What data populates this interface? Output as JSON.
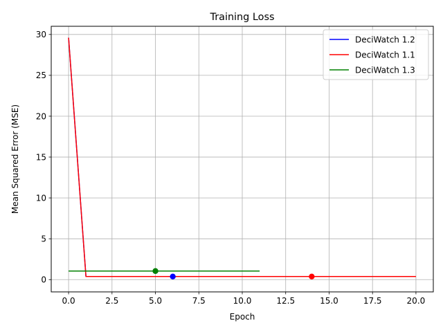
{
  "chart_data": {
    "type": "line",
    "title": "Training Loss",
    "xlabel": "Epoch",
    "ylabel": "Mean Squared Error (MSE)",
    "xlim": [
      -1.0,
      21.0
    ],
    "ylim": [
      -1.5,
      31.0
    ],
    "xticks": [
      0.0,
      2.5,
      5.0,
      7.5,
      10.0,
      12.5,
      15.0,
      17.5,
      20.0
    ],
    "xtick_labels": [
      "0.0",
      "2.5",
      "5.0",
      "7.5",
      "10.0",
      "12.5",
      "15.0",
      "17.5",
      "20.0"
    ],
    "yticks": [
      0,
      5,
      10,
      15,
      20,
      25,
      30
    ],
    "ytick_labels": [
      "0",
      "5",
      "10",
      "15",
      "20",
      "25",
      "30"
    ],
    "grid": true,
    "legend_position": "upper right",
    "series": [
      {
        "name": "DeciWatch 1.2",
        "color": "#0000ff",
        "x": [
          0,
          1,
          2,
          3,
          4,
          5,
          6,
          7,
          8,
          9,
          10,
          11,
          12
        ],
        "y": [
          29.6,
          0.38,
          0.38,
          0.38,
          0.38,
          0.38,
          0.38,
          0.38,
          0.38,
          0.38,
          0.38,
          0.38,
          0.38
        ],
        "marker": {
          "x": 6,
          "y": 0.38
        }
      },
      {
        "name": "DeciWatch 1.1",
        "color": "#ff0000",
        "x": [
          0,
          1,
          2,
          3,
          4,
          5,
          6,
          7,
          8,
          9,
          10,
          11,
          12,
          13,
          14,
          15,
          16,
          17,
          18,
          19,
          20
        ],
        "y": [
          29.6,
          0.38,
          0.38,
          0.38,
          0.38,
          0.38,
          0.38,
          0.38,
          0.38,
          0.38,
          0.38,
          0.38,
          0.38,
          0.38,
          0.38,
          0.38,
          0.38,
          0.38,
          0.38,
          0.38,
          0.38
        ],
        "marker": {
          "x": 14,
          "y": 0.38
        }
      },
      {
        "name": "DeciWatch 1.3",
        "color": "#008000",
        "x": [
          0,
          1,
          2,
          3,
          4,
          5,
          6,
          7,
          8,
          9,
          10,
          11
        ],
        "y": [
          1.05,
          1.05,
          1.05,
          1.05,
          1.05,
          1.05,
          1.05,
          1.05,
          1.05,
          1.05,
          1.05,
          1.05
        ],
        "marker": {
          "x": 5,
          "y": 1.05
        }
      }
    ]
  }
}
